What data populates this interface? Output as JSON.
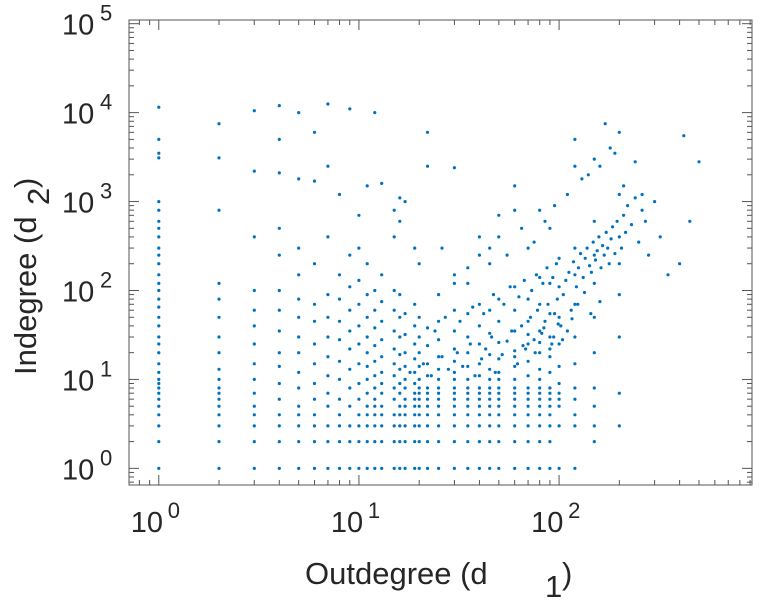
{
  "chart_data": {
    "type": "scatter",
    "title": "",
    "xlabel": {
      "text": "Outdegree (d",
      "sub": "1",
      "close": ")"
    },
    "ylabel": {
      "text": "Indegree (d",
      "sub": "2",
      "close": ")"
    },
    "xscale": "log",
    "yscale": "log",
    "xlim": [
      0.71,
      920
    ],
    "ylim": [
      0.65,
      110000
    ],
    "x_ticks": [
      {
        "base": "10",
        "exp": "0",
        "value": 1
      },
      {
        "base": "10",
        "exp": "1",
        "value": 10
      },
      {
        "base": "10",
        "exp": "2",
        "value": 100
      }
    ],
    "y_ticks": [
      {
        "base": "10",
        "exp": "0",
        "value": 1
      },
      {
        "base": "10",
        "exp": "1",
        "value": 10
      },
      {
        "base": "10",
        "exp": "2",
        "value": 100
      },
      {
        "base": "10",
        "exp": "3",
        "value": 1000
      },
      {
        "base": "10",
        "exp": "4",
        "value": 10000
      },
      {
        "base": "10",
        "exp": "5",
        "value": 100000
      }
    ],
    "grid": false,
    "marker_color": "#0072BD",
    "axis_color": "#555555",
    "columns": [
      {
        "x": 1,
        "y": [
          1,
          2,
          3,
          4,
          5,
          6,
          7,
          8,
          9,
          10,
          12,
          15,
          20,
          25,
          30,
          40,
          50,
          65,
          80,
          100,
          120,
          150,
          200,
          250,
          300,
          400,
          500,
          600,
          800,
          1000,
          3100,
          3500,
          5000,
          11500
        ]
      },
      {
        "x": 2,
        "y": [
          1,
          2,
          3,
          4,
          5,
          6,
          7,
          8,
          10,
          13,
          20,
          30,
          50,
          80,
          120,
          800,
          3100,
          7500
        ]
      },
      {
        "x": 3,
        "y": [
          1,
          2,
          3,
          4,
          5,
          7,
          10,
          15,
          25,
          40,
          60,
          100,
          400,
          2200,
          10500
        ]
      },
      {
        "x": 4,
        "y": [
          1,
          2,
          3,
          4,
          6,
          9,
          14,
          20,
          35,
          60,
          100,
          250,
          500,
          2100,
          5000,
          12000
        ]
      },
      {
        "x": 5,
        "y": [
          1,
          2,
          3,
          4,
          5,
          8,
          12,
          20,
          30,
          50,
          80,
          150,
          300,
          1800,
          10000
        ]
      },
      {
        "x": 6,
        "y": [
          1,
          2,
          3,
          4,
          6,
          9,
          15,
          25,
          45,
          70,
          200,
          1700,
          6000
        ]
      },
      {
        "x": 7,
        "y": [
          1,
          2,
          3,
          5,
          7,
          11,
          18,
          30,
          50,
          90,
          400,
          2500,
          12500
        ]
      },
      {
        "x": 8,
        "y": [
          1,
          2,
          3,
          4,
          6,
          10,
          16,
          28,
          45,
          80,
          150,
          1200
        ]
      },
      {
        "x": 9,
        "y": [
          1,
          2,
          3,
          5,
          8,
          13,
          22,
          35,
          60,
          110,
          250,
          11000
        ]
      },
      {
        "x": 10,
        "y": [
          1,
          2,
          3,
          4,
          6,
          9,
          15,
          25,
          40,
          70,
          130,
          300,
          700
        ]
      },
      {
        "x": 11,
        "y": [
          1,
          2,
          3,
          4,
          5,
          7,
          10,
          14,
          20,
          30,
          50,
          90,
          200,
          1500
        ]
      },
      {
        "x": 12,
        "y": [
          1,
          2,
          3,
          4,
          5,
          6,
          8,
          11,
          16,
          24,
          38,
          60,
          100,
          10000
        ]
      },
      {
        "x": 13,
        "y": [
          1,
          2,
          3,
          4,
          5,
          7,
          9,
          12,
          18,
          28,
          45,
          75,
          150,
          1600
        ]
      },
      {
        "x": 15,
        "y": [
          1,
          2,
          3,
          4,
          6,
          8,
          11,
          15,
          22,
          35,
          60,
          100,
          400,
          800
        ]
      },
      {
        "x": 16,
        "y": [
          1,
          2,
          3,
          4,
          5,
          7,
          9,
          13,
          19,
          30,
          50,
          90,
          600,
          1100
        ]
      },
      {
        "x": 17,
        "y": [
          1,
          2,
          3,
          4,
          5,
          6,
          8,
          10,
          14,
          20,
          32,
          55,
          1000
        ]
      },
      {
        "x": 19,
        "y": [
          1,
          2,
          3,
          4,
          5,
          6,
          7,
          9,
          12,
          17,
          25,
          40,
          70,
          300
        ]
      },
      {
        "x": 20,
        "y": [
          1,
          2,
          3,
          4,
          5,
          6,
          7,
          8,
          10,
          14,
          20,
          30,
          50,
          200
        ]
      },
      {
        "x": 22,
        "y": [
          1,
          2,
          3,
          4,
          5,
          6,
          7,
          8,
          11,
          15,
          24,
          38,
          2500,
          6000
        ]
      },
      {
        "x": 25,
        "y": [
          1,
          2,
          3,
          4,
          5,
          6,
          7,
          8,
          10,
          13,
          18,
          28,
          45,
          90
        ]
      },
      {
        "x": 30,
        "y": [
          1,
          2,
          3,
          4,
          5,
          6,
          7,
          8,
          10,
          12,
          16,
          22,
          35,
          60,
          150,
          2400
        ]
      },
      {
        "x": 35,
        "y": [
          1,
          2,
          3,
          4,
          5,
          6,
          7,
          8,
          10,
          14,
          20,
          30,
          55,
          120
        ]
      },
      {
        "x": 40,
        "y": [
          1,
          2,
          3,
          4,
          5,
          6,
          7,
          8,
          11,
          15,
          25,
          40,
          70,
          400
        ]
      },
      {
        "x": 45,
        "y": [
          1,
          2,
          3,
          4,
          5,
          6,
          7,
          8,
          10,
          13,
          19,
          33,
          60,
          200
        ]
      },
      {
        "x": 50,
        "y": [
          1,
          2,
          3,
          4,
          5,
          6,
          7,
          8,
          10,
          12,
          17,
          26,
          45,
          80,
          700
        ]
      },
      {
        "x": 60,
        "y": [
          1,
          2,
          3,
          4,
          5,
          6,
          7,
          8,
          10,
          14,
          21,
          35,
          60,
          110,
          1500
        ]
      },
      {
        "x": 70,
        "y": [
          1,
          2,
          3,
          4,
          5,
          6,
          7,
          8,
          11,
          16,
          25,
          45,
          80,
          300
        ]
      },
      {
        "x": 80,
        "y": [
          1,
          2,
          3,
          4,
          5,
          6,
          7,
          8,
          10,
          13,
          20,
          35,
          70,
          140,
          800
        ]
      },
      {
        "x": 90,
        "y": [
          1,
          2,
          3,
          4,
          5,
          6,
          7,
          8,
          12,
          18,
          30,
          55,
          120,
          500
        ]
      },
      {
        "x": 100,
        "y": [
          1,
          3,
          5,
          6,
          7,
          9,
          14,
          25,
          50,
          110,
          230
        ]
      },
      {
        "x": 120,
        "y": [
          1,
          3,
          4,
          6,
          8,
          15,
          30,
          70,
          150,
          300,
          2500
        ]
      },
      {
        "x": 150,
        "y": [
          2,
          3,
          5,
          8,
          20,
          50,
          120,
          250,
          600,
          3000
        ]
      },
      {
        "x": 200,
        "y": [
          3,
          7,
          30,
          90,
          200,
          400,
          1200,
          6000
        ]
      }
    ],
    "cluster": [
      [
        18,
        12
      ],
      [
        21,
        15
      ],
      [
        23,
        11
      ],
      [
        26,
        18
      ],
      [
        28,
        13
      ],
      [
        31,
        20
      ],
      [
        33,
        14
      ],
      [
        36,
        25
      ],
      [
        38,
        11
      ],
      [
        41,
        17
      ],
      [
        43,
        22
      ],
      [
        46,
        30
      ],
      [
        48,
        12
      ],
      [
        52,
        19
      ],
      [
        55,
        27
      ],
      [
        58,
        35
      ],
      [
        62,
        15
      ],
      [
        65,
        40
      ],
      [
        68,
        22
      ],
      [
        72,
        50
      ],
      [
        75,
        28
      ],
      [
        78,
        60
      ],
      [
        82,
        33
      ],
      [
        85,
        45
      ],
      [
        88,
        70
      ],
      [
        92,
        25
      ],
      [
        95,
        55
      ],
      [
        98,
        80
      ],
      [
        24,
        35
      ],
      [
        27,
        50
      ],
      [
        32,
        45
      ],
      [
        37,
        65
      ],
      [
        42,
        55
      ],
      [
        47,
        90
      ],
      [
        53,
        70
      ],
      [
        57,
        110
      ],
      [
        63,
        85
      ],
      [
        67,
        130
      ],
      [
        73,
        100
      ],
      [
        77,
        150
      ],
      [
        83,
        120
      ],
      [
        87,
        180
      ],
      [
        93,
        140
      ],
      [
        97,
        200
      ],
      [
        102,
        40
      ],
      [
        105,
        90
      ],
      [
        108,
        130
      ],
      [
        112,
        160
      ],
      [
        115,
        60
      ],
      [
        118,
        210
      ],
      [
        122,
        110
      ],
      [
        125,
        180
      ],
      [
        128,
        260
      ],
      [
        132,
        140
      ],
      [
        135,
        230
      ],
      [
        138,
        300
      ],
      [
        142,
        190
      ],
      [
        145,
        160
      ],
      [
        148,
        350
      ],
      [
        152,
        220
      ],
      [
        155,
        280
      ],
      [
        158,
        400
      ],
      [
        162,
        180
      ],
      [
        165,
        320
      ],
      [
        168,
        250
      ],
      [
        172,
        450
      ],
      [
        175,
        300
      ],
      [
        178,
        200
      ],
      [
        182,
        380
      ],
      [
        185,
        520
      ],
      [
        190,
        260
      ],
      [
        195,
        600
      ],
      [
        205,
        300
      ],
      [
        210,
        700
      ],
      [
        215,
        450
      ],
      [
        220,
        900
      ],
      [
        230,
        550
      ],
      [
        240,
        1100
      ],
      [
        250,
        350
      ],
      [
        260,
        800
      ],
      [
        270,
        600
      ],
      [
        280,
        250
      ],
      [
        300,
        1000
      ],
      [
        320,
        400
      ],
      [
        350,
        150
      ],
      [
        400,
        200
      ],
      [
        450,
        600
      ],
      [
        500,
        2800
      ],
      [
        420,
        5500
      ],
      [
        170,
        7500
      ],
      [
        180,
        4000
      ],
      [
        160,
        2500
      ],
      [
        190,
        3500
      ],
      [
        140,
        2000
      ],
      [
        130,
        1800
      ],
      [
        120,
        5000
      ],
      [
        210,
        1500
      ],
      [
        240,
        2800
      ],
      [
        260,
        1200
      ],
      [
        60,
        18
      ],
      [
        66,
        24
      ],
      [
        70,
        32
      ],
      [
        76,
        20
      ],
      [
        80,
        26
      ],
      [
        84,
        38
      ],
      [
        90,
        22
      ],
      [
        94,
        30
      ],
      [
        99,
        42
      ],
      [
        104,
        28
      ],
      [
        110,
        35
      ],
      [
        116,
        48
      ],
      [
        124,
        70
      ],
      [
        134,
        95
      ],
      [
        144,
        55
      ],
      [
        160,
        75
      ],
      [
        35,
        180
      ],
      [
        45,
        300
      ],
      [
        55,
        250
      ],
      [
        65,
        500
      ],
      [
        75,
        350
      ],
      [
        85,
        600
      ],
      [
        95,
        900
      ],
      [
        110,
        1200
      ],
      [
        60,
        800
      ],
      [
        50,
        400
      ],
      [
        40,
        250
      ],
      [
        30,
        120
      ],
      [
        26,
        300
      ]
    ]
  }
}
